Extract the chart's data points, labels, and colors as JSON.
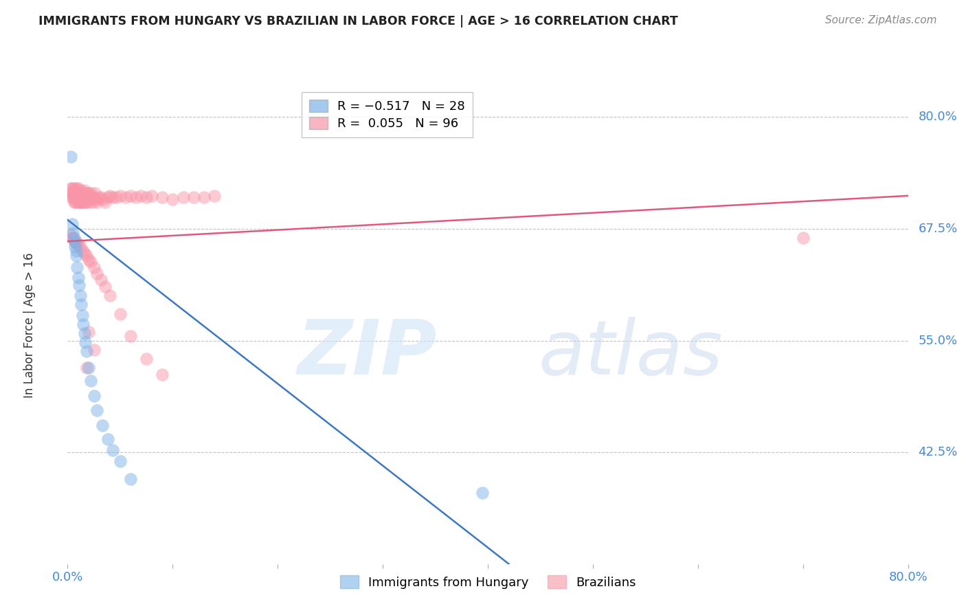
{
  "title": "IMMIGRANTS FROM HUNGARY VS BRAZILIAN IN LABOR FORCE | AGE > 16 CORRELATION CHART",
  "source": "Source: ZipAtlas.com",
  "ylabel": "In Labor Force | Age > 16",
  "xlim": [
    0.0,
    0.8
  ],
  "ylim": [
    0.3,
    0.835
  ],
  "yticks": [
    0.425,
    0.55,
    0.675,
    0.8
  ],
  "ytick_labels": [
    "42.5%",
    "55.0%",
    "67.5%",
    "80.0%"
  ],
  "hungary_color": "#7EB3E8",
  "brazil_color": "#F896A8",
  "hungary_line_color": "#3B78C4",
  "brazil_line_color": "#E8547A",
  "background_color": "#ffffff",
  "grid_color": "#bbbbbb",
  "hungary_trendline_x": [
    0.0,
    0.42
  ],
  "hungary_trendline_y": [
    0.685,
    0.3
  ],
  "brazil_trendline_x": [
    0.0,
    0.8
  ],
  "brazil_trendline_y": [
    0.661,
    0.712
  ],
  "hungary_scatter_x": [
    0.003,
    0.004,
    0.005,
    0.006,
    0.007,
    0.007,
    0.008,
    0.008,
    0.009,
    0.01,
    0.011,
    0.012,
    0.013,
    0.014,
    0.015,
    0.016,
    0.017,
    0.018,
    0.02,
    0.022,
    0.025,
    0.028,
    0.033,
    0.038,
    0.043,
    0.05,
    0.06,
    0.395
  ],
  "hungary_scatter_y": [
    0.756,
    0.68,
    0.67,
    0.665,
    0.66,
    0.655,
    0.65,
    0.645,
    0.632,
    0.62,
    0.612,
    0.6,
    0.59,
    0.578,
    0.568,
    0.558,
    0.548,
    0.538,
    0.52,
    0.505,
    0.488,
    0.472,
    0.455,
    0.44,
    0.427,
    0.415,
    0.395,
    0.38
  ],
  "brazil_scatter_x": [
    0.003,
    0.003,
    0.003,
    0.004,
    0.004,
    0.005,
    0.005,
    0.005,
    0.006,
    0.006,
    0.006,
    0.007,
    0.007,
    0.007,
    0.008,
    0.008,
    0.008,
    0.009,
    0.009,
    0.01,
    0.01,
    0.01,
    0.011,
    0.011,
    0.012,
    0.012,
    0.013,
    0.013,
    0.014,
    0.014,
    0.015,
    0.015,
    0.016,
    0.016,
    0.017,
    0.017,
    0.018,
    0.018,
    0.019,
    0.02,
    0.02,
    0.021,
    0.022,
    0.023,
    0.024,
    0.025,
    0.026,
    0.027,
    0.028,
    0.03,
    0.032,
    0.034,
    0.036,
    0.038,
    0.04,
    0.043,
    0.046,
    0.05,
    0.055,
    0.06,
    0.065,
    0.07,
    0.075,
    0.08,
    0.09,
    0.1,
    0.11,
    0.12,
    0.13,
    0.14,
    0.003,
    0.004,
    0.005,
    0.006,
    0.007,
    0.008,
    0.009,
    0.01,
    0.012,
    0.014,
    0.016,
    0.018,
    0.02,
    0.022,
    0.025,
    0.028,
    0.032,
    0.036,
    0.04,
    0.05,
    0.06,
    0.075,
    0.09,
    0.7,
    0.02,
    0.025,
    0.018
  ],
  "brazil_scatter_y": [
    0.72,
    0.715,
    0.71,
    0.72,
    0.715,
    0.71,
    0.718,
    0.712,
    0.72,
    0.715,
    0.705,
    0.718,
    0.712,
    0.705,
    0.72,
    0.715,
    0.708,
    0.715,
    0.705,
    0.72,
    0.715,
    0.705,
    0.715,
    0.705,
    0.718,
    0.705,
    0.715,
    0.705,
    0.715,
    0.705,
    0.715,
    0.705,
    0.718,
    0.708,
    0.715,
    0.705,
    0.715,
    0.705,
    0.71,
    0.715,
    0.705,
    0.71,
    0.715,
    0.708,
    0.705,
    0.71,
    0.715,
    0.708,
    0.705,
    0.71,
    0.71,
    0.708,
    0.705,
    0.71,
    0.712,
    0.71,
    0.71,
    0.712,
    0.71,
    0.712,
    0.71,
    0.712,
    0.71,
    0.712,
    0.71,
    0.708,
    0.71,
    0.71,
    0.71,
    0.712,
    0.668,
    0.665,
    0.665,
    0.662,
    0.66,
    0.66,
    0.658,
    0.658,
    0.655,
    0.65,
    0.648,
    0.645,
    0.64,
    0.638,
    0.632,
    0.625,
    0.618,
    0.61,
    0.6,
    0.58,
    0.555,
    0.53,
    0.512,
    0.665,
    0.56,
    0.54,
    0.52
  ]
}
